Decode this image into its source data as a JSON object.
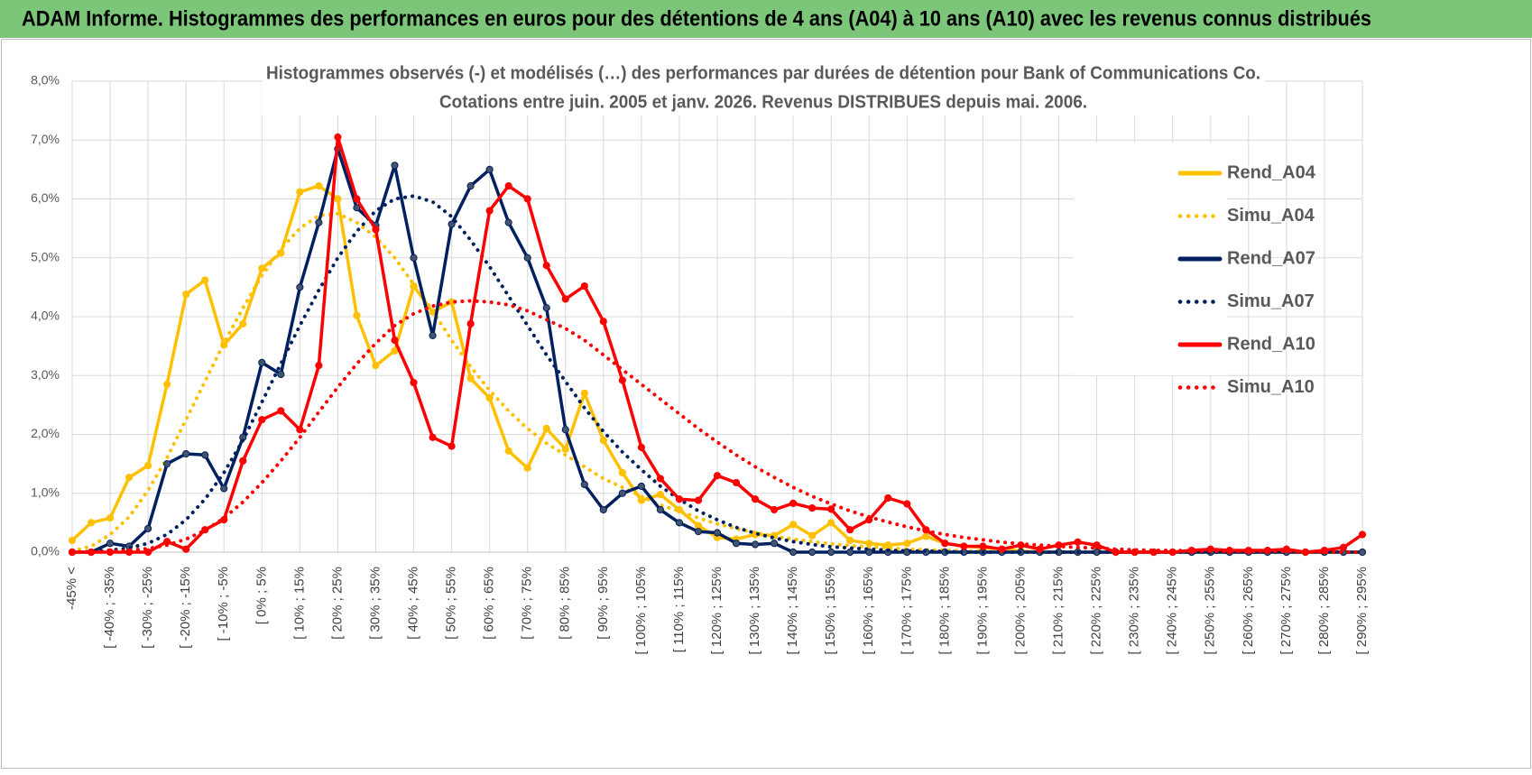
{
  "header": {
    "title": "ADAM Informe. Histogrammes des performances en euros pour des détentions de 4 ans (A04) à 10 ans (A10) avec les revenus connus distribués"
  },
  "chart_data": {
    "type": "line",
    "title": "Histogrammes observés (-) et modélisés (…) des performances par durées de détention pour Bank of Communications Co.",
    "subtitle": "Cotations entre juin. 2005 et janv. 2026. Revenus DISTRIBUES depuis mai. 2006.",
    "categories": [
      "-45% <",
      null,
      "[ -40% ; -35%",
      null,
      "[ -30% ; -25%",
      null,
      "[ -20% ; -15%",
      null,
      "[ -10% ; -5%",
      null,
      "[ 0% ; 5%",
      null,
      "[ 10% ; 15%",
      null,
      "[ 20% ; 25%",
      null,
      "[ 30% ; 35%",
      null,
      "[ 40% ; 45%",
      null,
      "[ 50% ; 55%",
      null,
      "[ 60% ; 65%",
      null,
      "[ 70% ; 75%",
      null,
      "[ 80% ; 85%",
      null,
      "[ 90% ; 95%",
      null,
      "[ 100% ; 105%",
      null,
      "[ 110% ; 115%",
      null,
      "[ 120% ; 125%",
      null,
      "[ 130% ; 135%",
      null,
      "[ 140% ; 145%",
      null,
      "[ 150% ; 155%",
      null,
      "[ 160% ; 165%",
      null,
      "[ 170% ; 175%",
      null,
      "[ 180% ; 185%",
      null,
      "[ 190% ; 195%",
      null,
      "[ 200% ; 205%",
      null,
      "[ 210% ; 215%",
      null,
      "[ 220% ; 225%",
      null,
      "[ 230% ; 235%",
      null,
      "[ 240% ; 245%",
      null,
      "[ 250% ; 255%",
      null,
      "[ 260% ; 265%",
      null,
      "[ 270% ; 275%",
      null,
      "[ 280% ; 285%",
      null,
      "[ 290% ; 295%"
    ],
    "series": [
      {
        "name": "Rend_A04",
        "color": "#FFC000",
        "style": "solid",
        "values": [
          0.2,
          0.5,
          0.58,
          1.27,
          1.47,
          2.85,
          4.38,
          4.62,
          3.52,
          3.88,
          4.82,
          5.08,
          6.12,
          6.22,
          6.0,
          4.02,
          3.17,
          3.42,
          4.52,
          4.08,
          4.25,
          2.95,
          2.62,
          1.72,
          1.43,
          2.1,
          1.75,
          2.7,
          1.9,
          1.35,
          0.88,
          0.98,
          0.72,
          0.45,
          0.25,
          0.22,
          0.3,
          0.28,
          0.47,
          0.28,
          0.5,
          0.2,
          0.15,
          0.12,
          0.15,
          0.27,
          0.15,
          0.1,
          0.08,
          0.05,
          0.02,
          0,
          0,
          0,
          0,
          0,
          0,
          0,
          0,
          0,
          0,
          0,
          0,
          0,
          0,
          0,
          0,
          0,
          0
        ]
      },
      {
        "name": "Simu_A04",
        "color": "#FFC000",
        "style": "dotted",
        "values": [
          0.02,
          0.1,
          0.3,
          0.6,
          1.05,
          1.6,
          2.25,
          2.9,
          3.55,
          4.15,
          4.7,
          5.15,
          5.5,
          5.72,
          5.75,
          5.6,
          5.35,
          5.0,
          4.55,
          4.1,
          3.6,
          3.15,
          2.75,
          2.4,
          2.1,
          1.85,
          1.65,
          1.45,
          1.25,
          1.1,
          0.95,
          0.8,
          0.7,
          0.58,
          0.48,
          0.4,
          0.33,
          0.27,
          0.22,
          0.18,
          0.14,
          0.11,
          0.09,
          0.07,
          0.05,
          0.04,
          0.03,
          0.02,
          0.02,
          0.01,
          0.01,
          0,
          0,
          0,
          0,
          0,
          0,
          0,
          0,
          0,
          0,
          0,
          0,
          0,
          0,
          0,
          0,
          0,
          0
        ]
      },
      {
        "name": "Rend_A07",
        "color": "#002060",
        "style": "solid",
        "values": [
          0,
          0,
          0.15,
          0.1,
          0.4,
          1.5,
          1.67,
          1.65,
          1.08,
          1.95,
          3.22,
          3.02,
          4.5,
          5.6,
          6.85,
          5.85,
          5.55,
          6.57,
          5.0,
          3.68,
          5.57,
          6.22,
          6.5,
          5.6,
          5.0,
          4.15,
          2.08,
          1.15,
          0.72,
          1.0,
          1.12,
          0.72,
          0.5,
          0.35,
          0.33,
          0.15,
          0.13,
          0.15,
          0,
          0,
          0,
          0,
          0,
          0,
          0,
          0,
          0,
          0,
          0,
          0,
          0,
          0,
          0,
          0,
          0,
          0,
          0,
          0,
          0,
          0,
          0,
          0,
          0,
          0,
          0,
          0,
          0,
          0,
          0
        ]
      },
      {
        "name": "Simu_A07",
        "color": "#002060",
        "style": "dotted",
        "values": [
          0,
          0.01,
          0.03,
          0.07,
          0.15,
          0.3,
          0.55,
          0.9,
          1.35,
          1.9,
          2.55,
          3.2,
          3.85,
          4.45,
          5.0,
          5.45,
          5.8,
          6.0,
          6.05,
          5.95,
          5.7,
          5.3,
          4.85,
          4.35,
          3.85,
          3.35,
          2.9,
          2.45,
          2.05,
          1.7,
          1.4,
          1.12,
          0.9,
          0.7,
          0.55,
          0.42,
          0.32,
          0.24,
          0.18,
          0.13,
          0.09,
          0.07,
          0.05,
          0.03,
          0.02,
          0.02,
          0.01,
          0,
          0,
          0,
          0,
          0,
          0,
          0,
          0,
          0,
          0,
          0,
          0,
          0,
          0,
          0,
          0,
          0,
          0,
          0,
          0,
          0,
          0
        ]
      },
      {
        "name": "Rend_A10",
        "color": "#FF0000",
        "style": "solid",
        "values": [
          0,
          0,
          0,
          0,
          0,
          0.18,
          0.05,
          0.38,
          0.55,
          1.55,
          2.25,
          2.4,
          2.08,
          3.17,
          7.05,
          6.0,
          5.48,
          3.6,
          2.88,
          1.95,
          1.8,
          3.88,
          5.8,
          6.22,
          6.0,
          4.87,
          4.3,
          4.52,
          3.92,
          2.92,
          1.78,
          1.25,
          0.9,
          0.88,
          1.3,
          1.18,
          0.9,
          0.72,
          0.83,
          0.75,
          0.73,
          0.38,
          0.55,
          0.92,
          0.82,
          0.38,
          0.15,
          0.1,
          0.1,
          0.05,
          0.12,
          0.05,
          0.12,
          0.17,
          0.12,
          0,
          0,
          0,
          0,
          0.03,
          0.05,
          0.03,
          0.03,
          0.03,
          0.05,
          0,
          0.03,
          0.08,
          0.3
        ]
      },
      {
        "name": "Simu_A10",
        "color": "#FF0000",
        "style": "dotted",
        "values": [
          0,
          0,
          0.01,
          0.03,
          0.06,
          0.12,
          0.22,
          0.37,
          0.58,
          0.85,
          1.18,
          1.55,
          1.95,
          2.38,
          2.8,
          3.2,
          3.55,
          3.85,
          4.05,
          4.18,
          4.25,
          4.27,
          4.25,
          4.2,
          4.1,
          3.95,
          3.8,
          3.6,
          3.35,
          3.1,
          2.85,
          2.6,
          2.35,
          2.1,
          1.87,
          1.65,
          1.45,
          1.27,
          1.1,
          0.95,
          0.82,
          0.7,
          0.6,
          0.51,
          0.43,
          0.36,
          0.3,
          0.25,
          0.21,
          0.17,
          0.14,
          0.12,
          0.1,
          0.08,
          0.07,
          0.05,
          0.04,
          0.03,
          0.03,
          0.02,
          0.02,
          0.01,
          0.01,
          0.01,
          0.01,
          0,
          0,
          0,
          0
        ]
      }
    ],
    "ylim": [
      0,
      8
    ],
    "yticks": [
      {
        "value": 0,
        "label": "0,0%"
      },
      {
        "value": 1,
        "label": "1,0%"
      },
      {
        "value": 2,
        "label": "2,0%"
      },
      {
        "value": 3,
        "label": "3,0%"
      },
      {
        "value": 4,
        "label": "4,0%"
      },
      {
        "value": 5,
        "label": "5,0%"
      },
      {
        "value": 6,
        "label": "6,0%"
      },
      {
        "value": 7,
        "label": "7,0%"
      },
      {
        "value": 8,
        "label": "8,0%"
      }
    ],
    "grid": true,
    "legend": "right"
  }
}
